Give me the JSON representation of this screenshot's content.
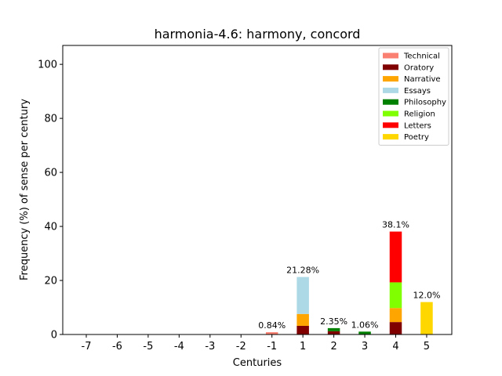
{
  "chart_data": {
    "type": "bar",
    "stacked": true,
    "title": "harmonia-4.6: harmony, concord",
    "xlabel": "Centuries",
    "ylabel": "Frequency (%) of sense per century",
    "ylim": [
      0,
      107
    ],
    "yticks": [
      0,
      20,
      40,
      60,
      80,
      100
    ],
    "categories": [
      "-7",
      "-6",
      "-5",
      "-4",
      "-3",
      "-2",
      "-1",
      "1",
      "2",
      "3",
      "4",
      "5"
    ],
    "series": [
      {
        "name": "Technical",
        "color": "#fa8072",
        "values": [
          0,
          0,
          0,
          0,
          0,
          0,
          0.84,
          0,
          0,
          0,
          0,
          0
        ]
      },
      {
        "name": "Oratory",
        "color": "#800000",
        "values": [
          0,
          0,
          0,
          0,
          0,
          0,
          0,
          3.2,
          1.2,
          0,
          4.6,
          0
        ]
      },
      {
        "name": "Narrative",
        "color": "#ffa500",
        "values": [
          0,
          0,
          0,
          0,
          0,
          0,
          0,
          4.4,
          0,
          0,
          5.2,
          0
        ]
      },
      {
        "name": "Essays",
        "color": "#add8e6",
        "values": [
          0,
          0,
          0,
          0,
          0,
          0,
          0,
          13.68,
          0,
          0,
          0,
          0
        ]
      },
      {
        "name": "Philosophy",
        "color": "#008000",
        "values": [
          0,
          0,
          0,
          0,
          0,
          0,
          0,
          0,
          1.15,
          1.06,
          0,
          0
        ]
      },
      {
        "name": "Religion",
        "color": "#7fff00",
        "values": [
          0,
          0,
          0,
          0,
          0,
          0,
          0,
          0,
          0,
          0,
          9.5,
          0
        ]
      },
      {
        "name": "Letters",
        "color": "#ff0000",
        "values": [
          0,
          0,
          0,
          0,
          0,
          0,
          0,
          0,
          0,
          0,
          18.8,
          0
        ]
      },
      {
        "name": "Poetry",
        "color": "#ffd700",
        "values": [
          0,
          0,
          0,
          0,
          0,
          0,
          0,
          0,
          0,
          0,
          0,
          12.0
        ]
      }
    ],
    "bar_labels": [
      "",
      "",
      "",
      "",
      "",
      "",
      "0.84%",
      "21.28%",
      "2.35%",
      "1.06%",
      "38.1%",
      "12.0%"
    ],
    "legend_position": "top-right",
    "grid": false
  }
}
